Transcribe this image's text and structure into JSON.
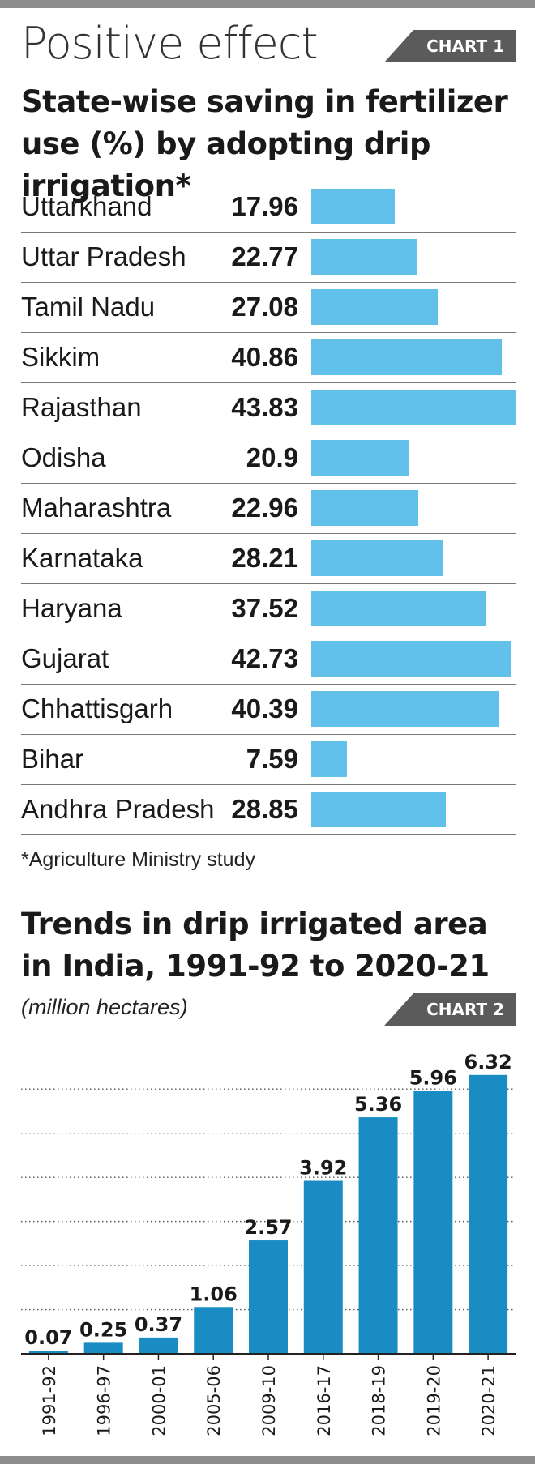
{
  "header": {
    "headline": "Positive effect",
    "tag1": "CHART 1",
    "tag2": "CHART 2"
  },
  "chart_data": [
    {
      "type": "bar",
      "orientation": "horizontal",
      "title": "State-wise saving in fertilizer use (%) by adopting drip irrigation*",
      "categories": [
        "Uttarkhand",
        "Uttar Pradesh",
        "Tamil Nadu",
        "Sikkim",
        "Rajasthan",
        "Odisha",
        "Maharashtra",
        "Karnataka",
        "Haryana",
        "Gujarat",
        "Chhattisgarh",
        "Bihar",
        "Andhra Pradesh"
      ],
      "values": [
        17.96,
        22.77,
        27.08,
        40.86,
        43.83,
        20.9,
        22.96,
        28.21,
        37.52,
        42.73,
        40.39,
        7.59,
        28.85
      ],
      "value_labels": [
        "17.96",
        "22.77",
        "27.08",
        "40.86",
        "43.83",
        "20.9",
        "22.96",
        "28.21",
        "37.52",
        "42.73",
        "40.39",
        "7.59",
        "28.85"
      ],
      "bar_color": "#62c1ea",
      "footnote": "*Agriculture Ministry study"
    },
    {
      "type": "bar",
      "title": "Trends in drip irrigated area in India, 1991-92 to 2020-21",
      "ylabel": "(million hectares)",
      "categories": [
        "1991-92",
        "1996-97",
        "2000-01",
        "2005-06",
        "2009-10",
        "2016-17",
        "2018-19",
        "2019-20",
        "2020-21"
      ],
      "values": [
        0.07,
        0.25,
        0.37,
        1.06,
        2.57,
        3.92,
        5.36,
        5.96,
        6.32
      ],
      "value_labels": [
        "0.07",
        "0.25",
        "0.37",
        "1.06",
        "2.57",
        "3.92",
        "5.36",
        "5.96",
        "6.32"
      ],
      "ylim": [
        0,
        6.5
      ],
      "grid": "dotted horizontal",
      "bar_color": "#1a8cc4"
    }
  ]
}
